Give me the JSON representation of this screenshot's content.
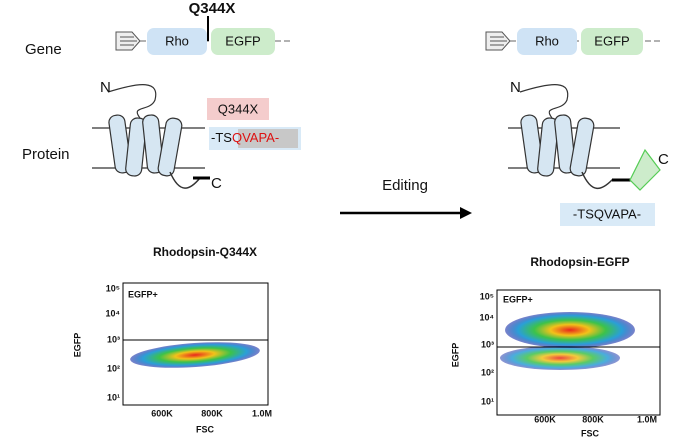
{
  "labels": {
    "gene": "Gene",
    "protein": "Protein"
  },
  "left": {
    "mutation": "Q344X",
    "gene_parts": [
      "Rho",
      "EGFP"
    ],
    "n_term": "N",
    "c_term": "C",
    "callout": "Q344X",
    "sequence_prefix": "-TS",
    "sequence_highlight": "QVAPA-"
  },
  "arrow_label": "Editing",
  "right": {
    "gene_parts": [
      "Rho",
      "EGFP"
    ],
    "n_term": "N",
    "c_term": "C",
    "sequence": "-TSQVAPA-"
  },
  "plots": [
    {
      "title": "Rhodopsin-Q344X",
      "gate": "EGFP+",
      "y_label": "EGFP",
      "x_label": "FSC",
      "yticks": [
        "10⁵",
        "10⁴",
        "10³",
        "10²",
        "10¹"
      ],
      "xticks": [
        "600K",
        "800K",
        "1.0M"
      ]
    },
    {
      "title": "Rhodopsin-EGFP",
      "gate": "EGFP+",
      "y_label": "EGFP",
      "x_label": "FSC",
      "yticks": [
        "10⁵",
        "10⁴",
        "10³",
        "10²",
        "10¹"
      ],
      "xticks": [
        "600K",
        "800K",
        "1.0M"
      ]
    }
  ]
}
